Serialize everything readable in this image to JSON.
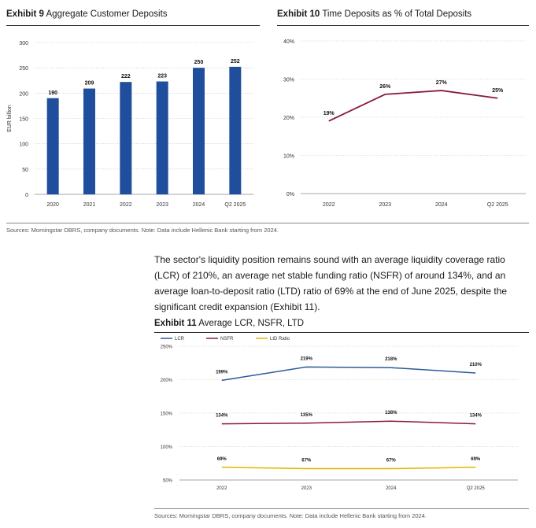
{
  "exhibit9": {
    "number": "Exhibit 9",
    "title": "Aggregate Customer Deposits",
    "source": "Sources: Morningstar DBRS, company documents. Note: Data include Hellenic Bank starting from 2024."
  },
  "exhibit10": {
    "number": "Exhibit 10",
    "title": "Time Deposits as % of Total Deposits"
  },
  "paragraph": "The sector's liquidity position remains sound with an average liquidity coverage ratio (LCR) of 210%, an average net stable funding ratio (NSFR) of around 134%, and an average loan-to-deposit ratio (LTD) ratio of 69% at the end of June 2025, despite the significant credit expansion (Exhibit 11).",
  "exhibit11": {
    "number": "Exhibit 11",
    "title": "Average LCR, NSFR, LTD",
    "source": "Sources: Morningstar DBRS, company documents. Note: Data include Hellenic Bank starting from 2024."
  },
  "chart_data": [
    {
      "type": "bar",
      "categories": [
        "2020",
        "2021",
        "2022",
        "2023",
        "2024",
        "Q2 2025"
      ],
      "values": [
        190,
        209,
        222,
        223,
        250,
        252
      ],
      "data_labels": [
        "190",
        "209",
        "222",
        "223",
        "250",
        "252"
      ],
      "ylabel": "EUR billion",
      "ylim": [
        0,
        300
      ],
      "yticks": [
        0,
        50,
        100,
        150,
        200,
        250,
        300
      ],
      "ytick_labels": [
        "0",
        "50",
        "100",
        "150",
        "200",
        "250",
        "300"
      ],
      "grid": true,
      "color": "#1f4e9c"
    },
    {
      "type": "line",
      "categories": [
        "2022",
        "2023",
        "2024",
        "Q2 2025"
      ],
      "values": [
        19,
        26,
        27,
        25
      ],
      "data_labels": [
        "19%",
        "26%",
        "27%",
        "25%"
      ],
      "ylim": [
        0,
        40
      ],
      "yticks": [
        0,
        10,
        20,
        30,
        40
      ],
      "ytick_labels": [
        "0%",
        "10%",
        "20%",
        "30%",
        "40%"
      ],
      "grid": true,
      "color": "#8b1a3a"
    },
    {
      "type": "line",
      "categories": [
        "2022",
        "2023",
        "2024",
        "Q2 2025"
      ],
      "ylim": [
        50,
        250
      ],
      "yticks": [
        50,
        100,
        150,
        200,
        250
      ],
      "ytick_labels": [
        "50%",
        "100%",
        "150%",
        "200%",
        "250%"
      ],
      "grid": true,
      "legend_position": "top-left",
      "series": [
        {
          "name": "LCR",
          "values": [
            199,
            219,
            218,
            210
          ],
          "data_labels": [
            "199%",
            "219%",
            "218%",
            "210%"
          ],
          "color": "#2e5a9c"
        },
        {
          "name": "NSFR",
          "values": [
            134,
            135,
            138,
            134
          ],
          "data_labels": [
            "134%",
            "135%",
            "138%",
            "134%"
          ],
          "color": "#8b1a3a"
        },
        {
          "name": "LtD Ratio",
          "values": [
            69,
            67,
            67,
            69
          ],
          "data_labels": [
            "69%",
            "67%",
            "67%",
            "69%"
          ],
          "color": "#e6b800"
        }
      ]
    }
  ]
}
